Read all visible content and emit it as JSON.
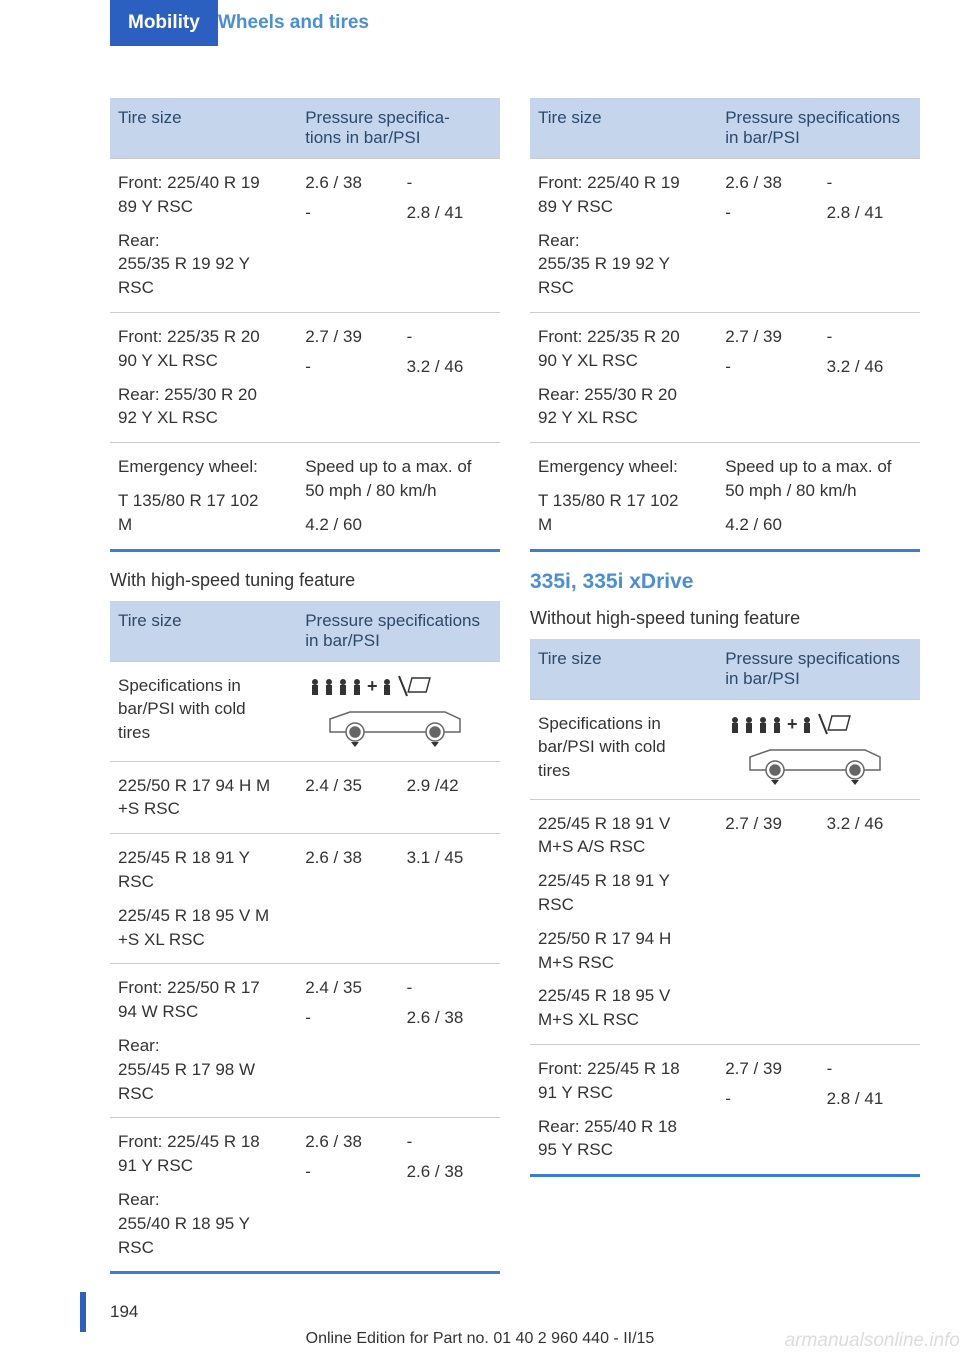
{
  "header": {
    "tab": "Mobility",
    "sub": "Wheels and tires"
  },
  "left": {
    "table1": {
      "h1": "Tire size",
      "h2": "Pressure specifica‐\ntions in bar/PSI",
      "rows": [
        {
          "c1a": "Front: 225/40 R 19\n89 Y RSC",
          "c1b": "Rear:\n255/35 R 19 92 Y\nRSC",
          "v1a": "2.6 / 38",
          "v1b": "-",
          "v2a": "-",
          "v2b": "2.8 / 41"
        },
        {
          "c1a": "Front: 225/35 R 20\n90 Y XL RSC",
          "c1b": "Rear: 255/30 R 20\n92 Y XL RSC",
          "v1a": "2.7 / 39",
          "v1b": "-",
          "v2a": "-",
          "v2b": "3.2 / 46"
        },
        {
          "c1a": "Emergency wheel:",
          "c1b": "T 135/80 R 17 102\nM",
          "full_a": "Speed up to a max. of\n50 mph / 80 km/h",
          "full_b": "4.2 / 60"
        }
      ]
    },
    "label": "With high-speed tuning feature",
    "table2": {
      "h1": "Tire size",
      "h2": "Pressure specifications\nin bar/PSI",
      "specrow": "Specifications in\nbar/PSI with cold\ntires",
      "rows": [
        {
          "c1a": "225/50 R 17 94 H M\n+S RSC",
          "v1": "2.4 / 35",
          "v2": "2.9 /42"
        },
        {
          "c1a": "225/45 R 18 91 Y\nRSC",
          "c1b": "225/45 R 18 95 V M\n+S XL RSC",
          "v1": "2.6 / 38",
          "v2": "3.1 / 45"
        },
        {
          "c1a": "Front: 225/50 R 17\n94 W RSC",
          "c1b": "Rear:\n255/45 R 17 98 W\nRSC",
          "v1a": "2.4 / 35",
          "v1b": "-",
          "v2a": "-",
          "v2b": "2.6 / 38"
        },
        {
          "c1a": "Front: 225/45 R 18\n91 Y RSC",
          "c1b": "Rear:\n255/40 R 18 95 Y\nRSC",
          "v1a": "2.6 / 38",
          "v1b": "-",
          "v2a": "-",
          "v2b": "2.6 / 38"
        }
      ]
    }
  },
  "right": {
    "table1": {
      "h1": "Tire size",
      "h2": "Pressure specifications\nin bar/PSI",
      "rows": [
        {
          "c1a": "Front: 225/40 R 19\n89 Y RSC",
          "c1b": "Rear:\n255/35 R 19 92 Y\nRSC",
          "v1a": "2.6 / 38",
          "v1b": "-",
          "v2a": "-",
          "v2b": "2.8 / 41"
        },
        {
          "c1a": "Front: 225/35 R 20\n90 Y XL RSC",
          "c1b": "Rear: 255/30 R 20\n92 Y XL RSC",
          "v1a": "2.7 / 39",
          "v1b": "-",
          "v2a": "-",
          "v2b": "3.2 / 46"
        },
        {
          "c1a": "Emergency wheel:",
          "c1b": "T 135/80 R 17 102\nM",
          "full_a": "Speed up to a max. of\n50 mph / 80 km/h",
          "full_b": "4.2 / 60"
        }
      ]
    },
    "section": "335i, 335i xDrive",
    "label": "Without high-speed tuning feature",
    "table2": {
      "h1": "Tire size",
      "h2": "Pressure specifications\nin bar/PSI",
      "specrow": "Specifications in\nbar/PSI with cold\ntires",
      "rows": [
        {
          "c1a": "225/45 R 18 91 V\nM+S A/S RSC",
          "c1b": "225/45 R 18 91 Y\nRSC",
          "c1c": "225/50 R 17 94 H\nM+S RSC",
          "c1d": "225/45 R 18 95 V\nM+S XL RSC",
          "v1": "2.7 / 39",
          "v2": "3.2 / 46"
        },
        {
          "c1a": "Front: 225/45 R 18\n91 Y RSC",
          "c1b": "Rear: 255/40 R 18\n95 Y RSC",
          "v1a": "2.7 / 39",
          "v1b": "-",
          "v2a": "-",
          "v2b": "2.8 / 41"
        }
      ]
    }
  },
  "footer": {
    "page": "194",
    "text": "Online Edition for Part no. 01 40 2 960 440 - II/15",
    "watermark": "armanualsonline.info"
  }
}
